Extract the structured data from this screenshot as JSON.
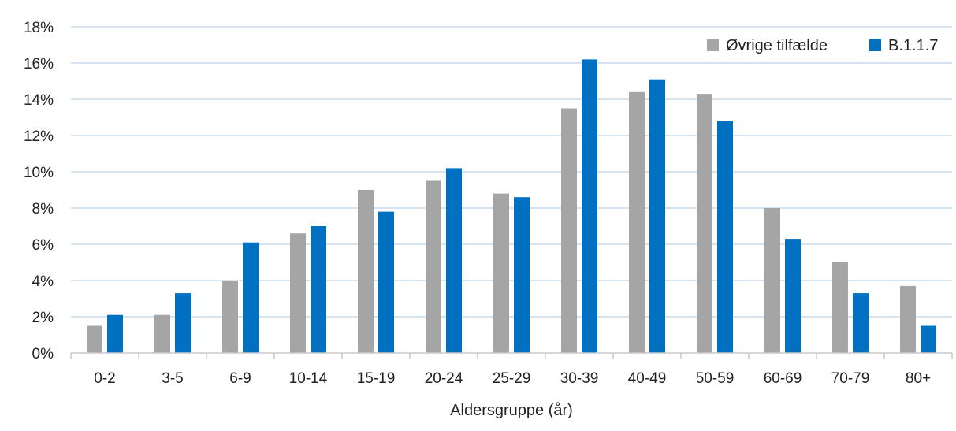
{
  "chart_data": {
    "type": "bar",
    "title": "",
    "xlabel": "Aldersgruppe (år)",
    "ylabel": "",
    "ylim": [
      0,
      18
    ],
    "y_tick_step": 2,
    "y_tick_suffix": "%",
    "grid": true,
    "legend_position": "top-right",
    "categories": [
      "0-2",
      "3-5",
      "6-9",
      "10-14",
      "15-19",
      "20-24",
      "25-29",
      "30-39",
      "40-49",
      "50-59",
      "60-69",
      "70-79",
      "80+"
    ],
    "series": [
      {
        "name": "Øvrige tilfælde",
        "color": "#a5a5a5",
        "values": [
          1.5,
          2.1,
          4.0,
          6.6,
          9.0,
          9.5,
          8.8,
          13.5,
          14.4,
          14.3,
          8.0,
          5.0,
          3.7
        ]
      },
      {
        "name": "B.1.1.7",
        "color": "#0070c0",
        "values": [
          2.1,
          3.3,
          6.1,
          7.0,
          7.8,
          10.2,
          8.6,
          16.2,
          15.1,
          12.8,
          6.3,
          3.3,
          1.5
        ]
      }
    ],
    "colors": {
      "grid": "#bcd4ea",
      "axis": "#c9c9c9"
    }
  }
}
